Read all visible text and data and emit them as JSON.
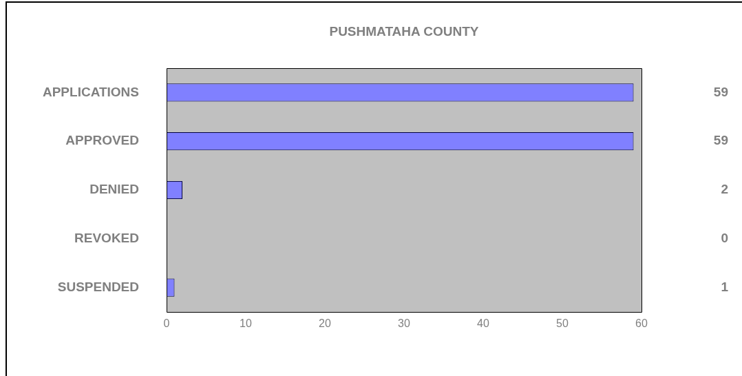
{
  "chart_data": {
    "type": "bar",
    "orientation": "horizontal",
    "title": "PUSHMATAHA COUNTY",
    "categories": [
      "APPLICATIONS",
      "APPROVED",
      "DENIED",
      "REVOKED",
      "SUSPENDED"
    ],
    "values": [
      59,
      59,
      2,
      0,
      1
    ],
    "color": "#8080ff",
    "xlim": [
      0,
      60
    ],
    "xticks": [
      0,
      10,
      20,
      30,
      40,
      50,
      60
    ],
    "grid": false,
    "legend": false,
    "data_labels": true
  }
}
